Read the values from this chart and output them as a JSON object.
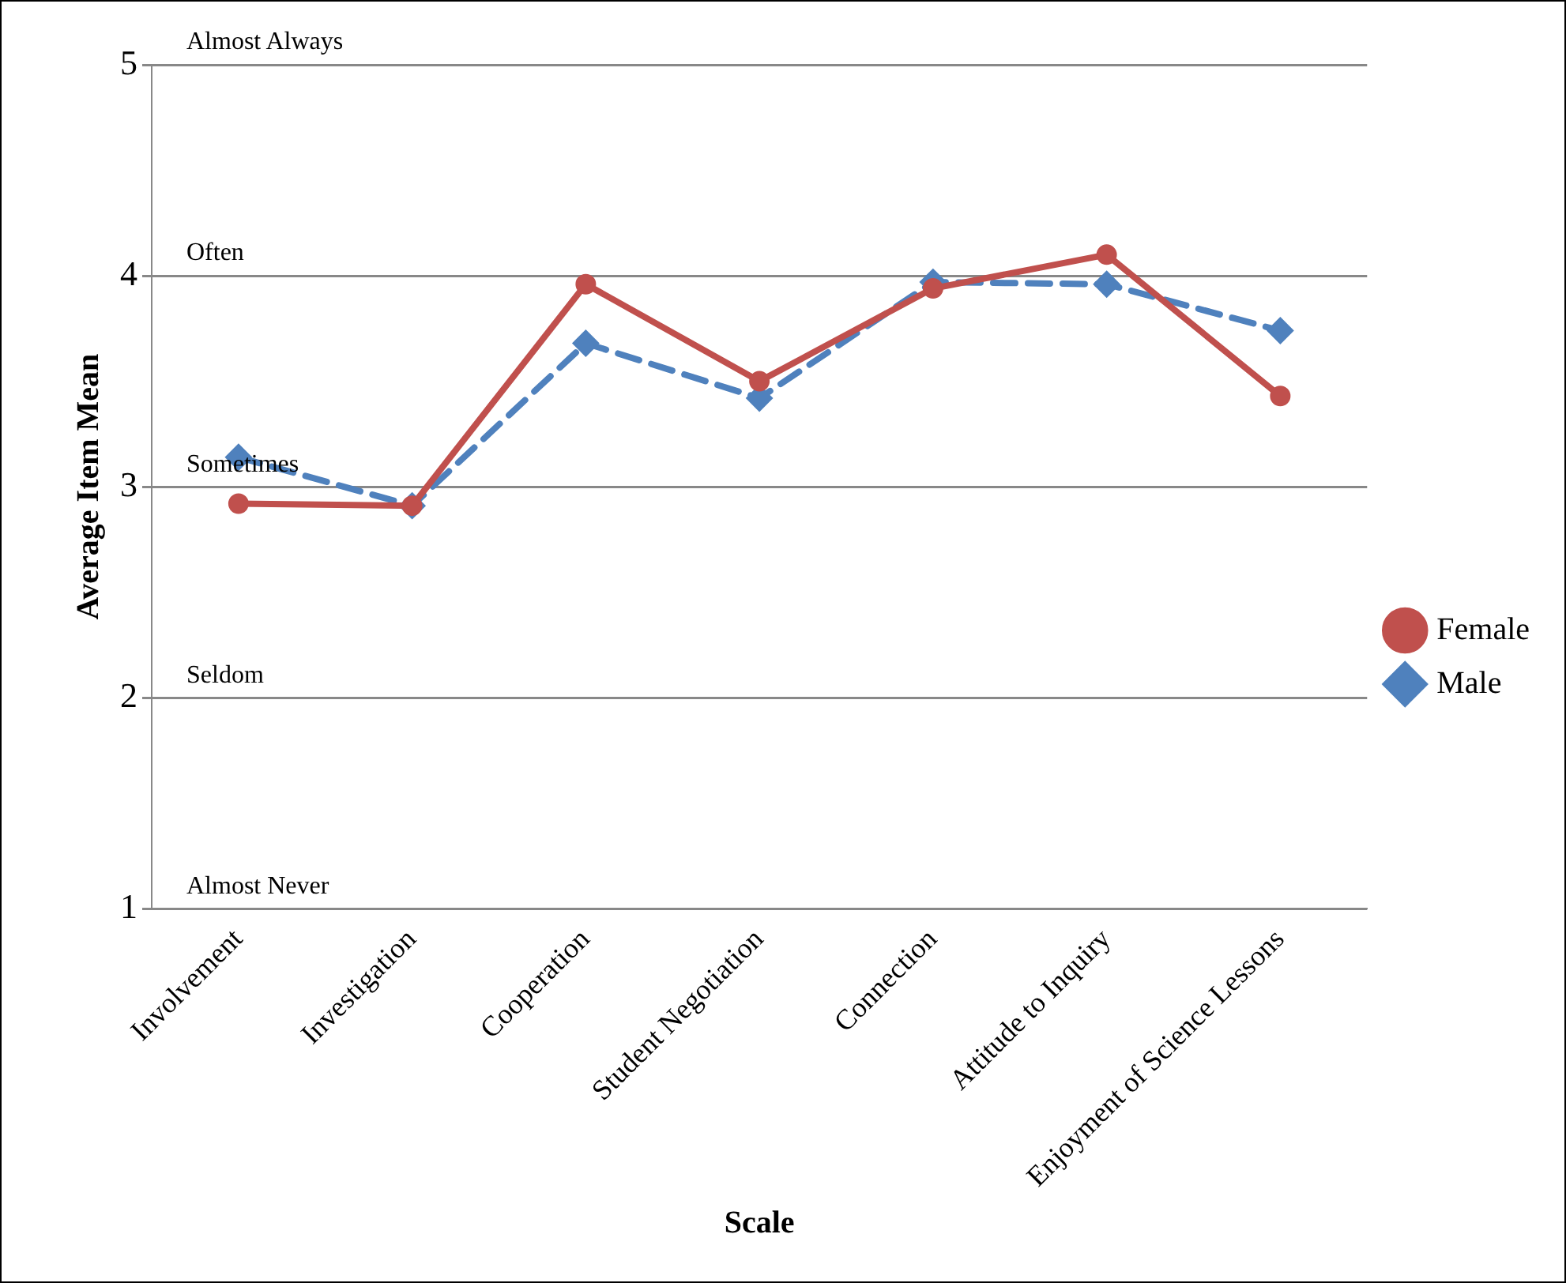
{
  "chart_data": {
    "type": "line",
    "xlabel": "Scale",
    "ylabel": "Average Item Mean",
    "categories": [
      "Involvement",
      "Investigation",
      "Cooperation",
      "Student Negotiation",
      "Connection",
      "Attitude to Inquiry",
      "Enjoyment of Science Lessons"
    ],
    "series": [
      {
        "name": "Male",
        "color": "#4f81bd",
        "marker": "diamond",
        "line_style": "dashed",
        "values": [
          3.14,
          2.91,
          3.68,
          3.42,
          3.97,
          3.96,
          3.74
        ]
      },
      {
        "name": "Female",
        "color": "#c0504d",
        "marker": "circle",
        "line_style": "solid",
        "values": [
          2.92,
          2.91,
          3.96,
          3.5,
          3.94,
          4.1,
          3.43
        ]
      }
    ],
    "ylim": [
      1,
      5
    ],
    "yticks": [
      1,
      2,
      3,
      4,
      5
    ],
    "grid": "y",
    "legend": "right",
    "annotations": [
      "Almost Always",
      "Often",
      "Sometimes",
      "Seldom",
      "Almost Never"
    ]
  }
}
